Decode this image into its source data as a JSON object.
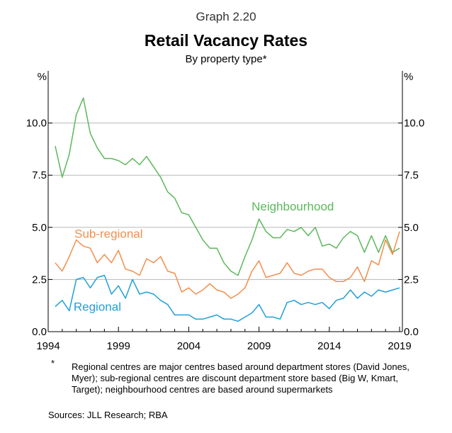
{
  "header": {
    "graph_label": "Graph 2.20",
    "title": "Retail Vacancy Rates",
    "subtitle": "By property type*"
  },
  "footnote": {
    "marker": "*",
    "text": "Regional centres are major centres based around department stores (David Jones, Myer); sub-regional centres are discount department store based (Big W, Kmart, Target); neighbourhood centres are based around supermarkets"
  },
  "sources": "Sources: JLL Research; RBA",
  "chart_data": {
    "type": "line",
    "title": "Retail Vacancy Rates",
    "subtitle": "By property type*",
    "ylabel_left": "%",
    "ylabel_right": "%",
    "ylim": [
      0,
      12.5
    ],
    "yticks": [
      0,
      2.5,
      5,
      7.5,
      10
    ],
    "ytick_labels": [
      "0.0",
      "2.5",
      "5.0",
      "7.5",
      "10.0"
    ],
    "xlim": [
      1994,
      2019.2
    ],
    "xticks": [
      1994,
      1999,
      2004,
      2009,
      2014,
      2019
    ],
    "xtick_labels": [
      "1994",
      "1999",
      "2004",
      "2009",
      "2014",
      "2019"
    ],
    "grid": true,
    "series": [
      {
        "name": "Neighbourhood",
        "color": "#5cb85c",
        "label_at": [
          2011.4,
          5.8
        ],
        "points": [
          [
            1994.5,
            8.9
          ],
          [
            1995,
            7.4
          ],
          [
            1995.5,
            8.5
          ],
          [
            1996,
            10.4
          ],
          [
            1996.5,
            11.2
          ],
          [
            1997,
            9.5
          ],
          [
            1997.5,
            8.8
          ],
          [
            1998,
            8.3
          ],
          [
            1998.5,
            8.3
          ],
          [
            1999,
            8.2
          ],
          [
            1999.5,
            8.0
          ],
          [
            2000,
            8.3
          ],
          [
            2000.5,
            8.0
          ],
          [
            2001,
            8.4
          ],
          [
            2001.5,
            7.9
          ],
          [
            2002,
            7.4
          ],
          [
            2002.5,
            6.7
          ],
          [
            2003,
            6.4
          ],
          [
            2003.5,
            5.7
          ],
          [
            2004,
            5.6
          ],
          [
            2004.5,
            5.0
          ],
          [
            2005,
            4.4
          ],
          [
            2005.5,
            4.0
          ],
          [
            2006,
            4.0
          ],
          [
            2006.5,
            3.3
          ],
          [
            2007,
            2.9
          ],
          [
            2007.5,
            2.7
          ],
          [
            2008,
            3.6
          ],
          [
            2008.5,
            4.4
          ],
          [
            2009,
            5.4
          ],
          [
            2009.5,
            4.8
          ],
          [
            2010,
            4.5
          ],
          [
            2010.5,
            4.5
          ],
          [
            2011,
            4.9
          ],
          [
            2011.5,
            4.8
          ],
          [
            2012,
            5.0
          ],
          [
            2012.5,
            4.6
          ],
          [
            2013,
            5.0
          ],
          [
            2013.5,
            4.1
          ],
          [
            2014,
            4.2
          ],
          [
            2014.5,
            4.0
          ],
          [
            2015,
            4.5
          ],
          [
            2015.5,
            4.8
          ],
          [
            2016,
            4.6
          ],
          [
            2016.5,
            3.8
          ],
          [
            2017,
            4.6
          ],
          [
            2017.5,
            3.8
          ],
          [
            2018,
            4.6
          ],
          [
            2018.5,
            3.8
          ],
          [
            2019,
            4.0
          ]
        ]
      },
      {
        "name": "Sub-regional",
        "color": "#f28e4c",
        "label_at": [
          1998.3,
          4.5
        ],
        "points": [
          [
            1994.5,
            3.3
          ],
          [
            1995,
            2.9
          ],
          [
            1995.5,
            3.6
          ],
          [
            1996,
            4.4
          ],
          [
            1996.5,
            4.1
          ],
          [
            1997,
            4.0
          ],
          [
            1997.5,
            3.3
          ],
          [
            1998,
            3.7
          ],
          [
            1998.5,
            3.3
          ],
          [
            1999,
            3.9
          ],
          [
            1999.5,
            3.0
          ],
          [
            2000,
            2.9
          ],
          [
            2000.5,
            2.7
          ],
          [
            2001,
            3.5
          ],
          [
            2001.5,
            3.3
          ],
          [
            2002,
            3.6
          ],
          [
            2002.5,
            2.9
          ],
          [
            2003,
            2.8
          ],
          [
            2003.5,
            1.9
          ],
          [
            2004,
            2.1
          ],
          [
            2004.5,
            1.8
          ],
          [
            2005,
            2.0
          ],
          [
            2005.5,
            2.3
          ],
          [
            2006,
            2.0
          ],
          [
            2006.5,
            1.9
          ],
          [
            2007,
            1.6
          ],
          [
            2007.5,
            1.8
          ],
          [
            2008,
            2.1
          ],
          [
            2008.5,
            2.9
          ],
          [
            2009,
            3.4
          ],
          [
            2009.5,
            2.6
          ],
          [
            2010,
            2.7
          ],
          [
            2010.5,
            2.8
          ],
          [
            2011,
            3.3
          ],
          [
            2011.5,
            2.8
          ],
          [
            2012,
            2.7
          ],
          [
            2012.5,
            2.9
          ],
          [
            2013,
            3.0
          ],
          [
            2013.5,
            3.0
          ],
          [
            2014,
            2.6
          ],
          [
            2014.5,
            2.4
          ],
          [
            2015,
            2.4
          ],
          [
            2015.5,
            2.6
          ],
          [
            2016,
            3.1
          ],
          [
            2016.5,
            2.4
          ],
          [
            2017,
            3.4
          ],
          [
            2017.5,
            3.2
          ],
          [
            2018,
            4.4
          ],
          [
            2018.5,
            3.7
          ],
          [
            2019,
            4.8
          ]
        ]
      },
      {
        "name": "Regional",
        "color": "#1fa0d8",
        "label_at": [
          1997.5,
          1.0
        ],
        "points": [
          [
            1994.5,
            1.2
          ],
          [
            1995,
            1.5
          ],
          [
            1995.5,
            1.0
          ],
          [
            1996,
            2.5
          ],
          [
            1996.5,
            2.6
          ],
          [
            1997,
            2.1
          ],
          [
            1997.5,
            2.6
          ],
          [
            1998,
            2.7
          ],
          [
            1998.5,
            1.8
          ],
          [
            1999,
            2.2
          ],
          [
            1999.5,
            1.6
          ],
          [
            2000,
            2.5
          ],
          [
            2000.5,
            1.8
          ],
          [
            2001,
            1.9
          ],
          [
            2001.5,
            1.8
          ],
          [
            2002,
            1.5
          ],
          [
            2002.5,
            1.3
          ],
          [
            2003,
            0.8
          ],
          [
            2003.5,
            0.8
          ],
          [
            2004,
            0.8
          ],
          [
            2004.5,
            0.6
          ],
          [
            2005,
            0.6
          ],
          [
            2005.5,
            0.7
          ],
          [
            2006,
            0.8
          ],
          [
            2006.5,
            0.6
          ],
          [
            2007,
            0.6
          ],
          [
            2007.5,
            0.5
          ],
          [
            2008,
            0.7
          ],
          [
            2008.5,
            0.9
          ],
          [
            2009,
            1.3
          ],
          [
            2009.5,
            0.7
          ],
          [
            2010,
            0.7
          ],
          [
            2010.5,
            0.6
          ],
          [
            2011,
            1.4
          ],
          [
            2011.5,
            1.5
          ],
          [
            2012,
            1.3
          ],
          [
            2012.5,
            1.4
          ],
          [
            2013,
            1.3
          ],
          [
            2013.5,
            1.4
          ],
          [
            2014,
            1.1
          ],
          [
            2014.5,
            1.5
          ],
          [
            2015,
            1.6
          ],
          [
            2015.5,
            2.0
          ],
          [
            2016,
            1.6
          ],
          [
            2016.5,
            1.9
          ],
          [
            2017,
            1.7
          ],
          [
            2017.5,
            2.0
          ],
          [
            2018,
            1.9
          ],
          [
            2018.5,
            2.0
          ],
          [
            2019,
            2.1
          ]
        ]
      }
    ]
  }
}
